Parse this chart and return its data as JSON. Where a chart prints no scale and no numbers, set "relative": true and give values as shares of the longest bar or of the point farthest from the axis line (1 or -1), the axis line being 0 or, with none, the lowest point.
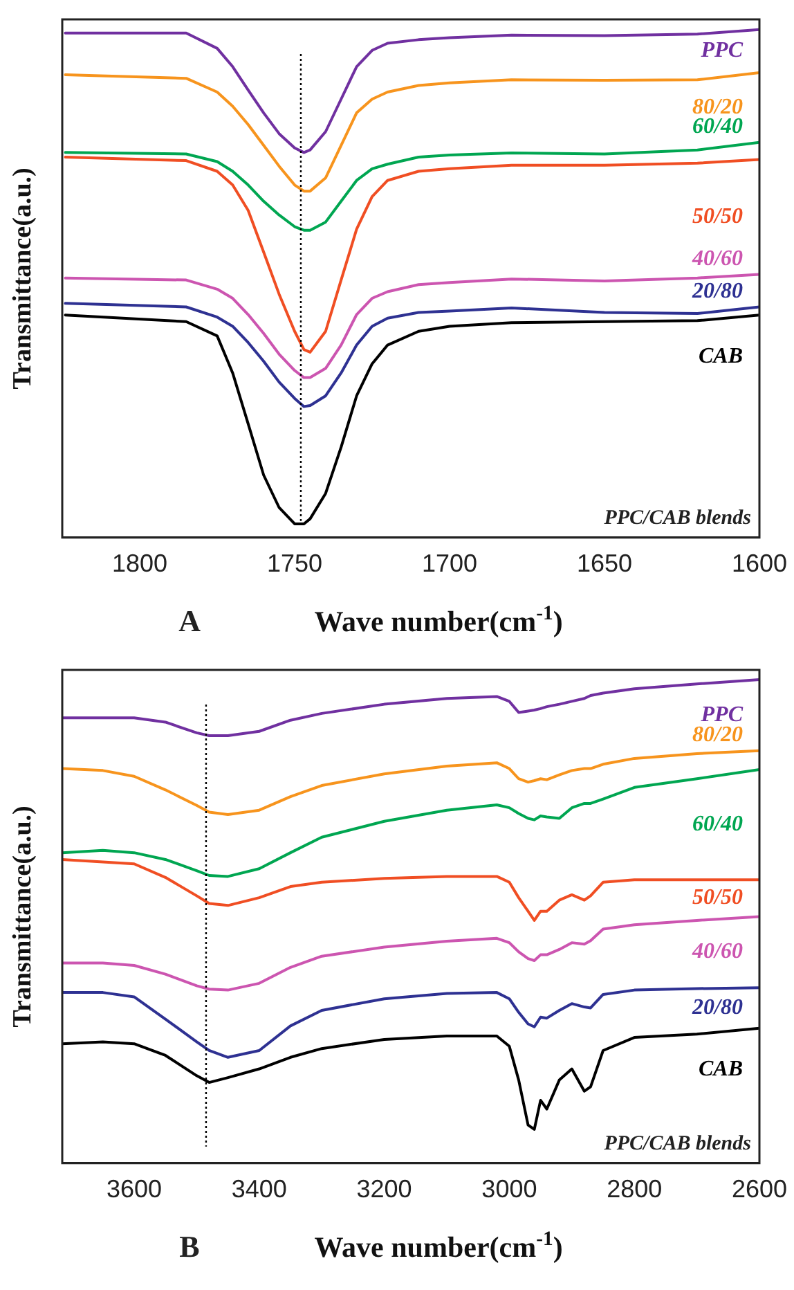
{
  "chart_data": [
    {
      "type": "line",
      "relative": true,
      "xlabel": "Wave number(cm$^{-1}$)",
      "ylabel": "Transmittance(a.u.)",
      "annotations": [
        "PPC/CAB blends",
        "A"
      ],
      "grid": false,
      "legend": false,
      "marker": "none",
      "xlim": [
        1825,
        1600
      ],
      "xticks": [
        1800,
        1750,
        1700,
        1650,
        1600
      ],
      "ref_lines": [
        {
          "axis": "x",
          "value": 1748,
          "line_style": "dotted",
          "color": "#000000"
        }
      ],
      "x": [
        1824,
        1785,
        1775,
        1770,
        1765,
        1760,
        1755,
        1750,
        1747,
        1745,
        1740,
        1735,
        1730,
        1725,
        1720,
        1710,
        1700,
        1680,
        1650,
        1620,
        1600
      ],
      "series": [
        {
          "name": "PPC",
          "color": "#7030a0",
          "values": [
            0.993,
            0.993,
            0.963,
            0.927,
            0.881,
            0.836,
            0.795,
            0.767,
            0.758,
            0.763,
            0.799,
            0.863,
            0.927,
            0.959,
            0.973,
            0.98,
            0.984,
            0.989,
            0.988,
            0.991,
            1
          ]
        },
        {
          "name": "80/20",
          "color": "#f7941d",
          "values": [
            0.911,
            0.904,
            0.877,
            0.849,
            0.813,
            0.772,
            0.731,
            0.694,
            0.682,
            0.682,
            0.708,
            0.772,
            0.836,
            0.863,
            0.877,
            0.89,
            0.895,
            0.901,
            0.9,
            0.901,
            0.915
          ]
        },
        {
          "name": "60/40",
          "color": "#00a651",
          "values": [
            0.758,
            0.755,
            0.74,
            0.721,
            0.694,
            0.662,
            0.635,
            0.612,
            0.605,
            0.605,
            0.621,
            0.662,
            0.703,
            0.726,
            0.735,
            0.749,
            0.753,
            0.757,
            0.755,
            0.763,
            0.778
          ]
        },
        {
          "name": "50/50",
          "color": "#f04e23",
          "values": [
            0.749,
            0.742,
            0.721,
            0.694,
            0.644,
            0.562,
            0.479,
            0.406,
            0.37,
            0.365,
            0.406,
            0.507,
            0.607,
            0.671,
            0.703,
            0.721,
            0.726,
            0.733,
            0.733,
            0.737,
            0.744
          ]
        },
        {
          "name": "40/60",
          "color": "#cc55b0",
          "values": [
            0.511,
            0.507,
            0.489,
            0.471,
            0.439,
            0.402,
            0.361,
            0.329,
            0.315,
            0.315,
            0.333,
            0.379,
            0.439,
            0.471,
            0.484,
            0.498,
            0.502,
            0.509,
            0.505,
            0.511,
            0.518
          ]
        },
        {
          "name": "20/80",
          "color": "#2e3192",
          "values": [
            0.461,
            0.454,
            0.434,
            0.416,
            0.384,
            0.347,
            0.306,
            0.274,
            0.258,
            0.26,
            0.279,
            0.324,
            0.379,
            0.416,
            0.432,
            0.443,
            0.446,
            0.452,
            0.443,
            0.441,
            0.454
          ]
        },
        {
          "name": "CAB",
          "color": "#000000",
          "values": [
            0.438,
            0.425,
            0.397,
            0.324,
            0.224,
            0.123,
            0.059,
            0.027,
            0.027,
            0.037,
            0.087,
            0.178,
            0.279,
            0.342,
            0.379,
            0.406,
            0.416,
            0.423,
            0.425,
            0.427,
            0.438
          ]
        }
      ]
    },
    {
      "type": "line",
      "relative": true,
      "xlabel": "Wave number(cm$^{-1}$)",
      "ylabel": "Transmittance(a.u.)",
      "annotations": [
        "PPC/CAB blends",
        "B"
      ],
      "grid": false,
      "legend": false,
      "marker": "none",
      "xlim": [
        3715,
        2600
      ],
      "xticks": [
        3600,
        3400,
        3200,
        3000,
        2800,
        2600
      ],
      "ref_lines": [
        {
          "axis": "x",
          "value": 3485,
          "line_style": "dotted",
          "color": "#000000"
        }
      ],
      "x": [
        3715,
        3650,
        3600,
        3550,
        3500,
        3480,
        3450,
        3400,
        3350,
        3300,
        3200,
        3100,
        3020,
        3000,
        2985,
        2970,
        2960,
        2950,
        2940,
        2920,
        2900,
        2880,
        2870,
        2850,
        2800,
        2700,
        2600
      ],
      "series": [
        {
          "name": "PPC",
          "color": "#7030a0",
          "values": [
            0.921,
            0.921,
            0.921,
            0.912,
            0.89,
            0.884,
            0.884,
            0.893,
            0.916,
            0.93,
            0.949,
            0.961,
            0.965,
            0.955,
            0.932,
            0.935,
            0.937,
            0.94,
            0.944,
            0.949,
            0.955,
            0.961,
            0.967,
            0.972,
            0.981,
            0.991,
            1
          ]
        },
        {
          "name": "80/20",
          "color": "#f7941d",
          "values": [
            0.816,
            0.812,
            0.8,
            0.772,
            0.74,
            0.726,
            0.721,
            0.73,
            0.758,
            0.781,
            0.805,
            0.821,
            0.828,
            0.816,
            0.795,
            0.788,
            0.791,
            0.795,
            0.793,
            0.803,
            0.812,
            0.816,
            0.816,
            0.825,
            0.837,
            0.847,
            0.853
          ]
        },
        {
          "name": "60/40",
          "color": "#00a651",
          "values": [
            0.642,
            0.647,
            0.642,
            0.628,
            0.605,
            0.595,
            0.593,
            0.609,
            0.642,
            0.674,
            0.707,
            0.73,
            0.741,
            0.735,
            0.723,
            0.713,
            0.71,
            0.718,
            0.716,
            0.713,
            0.735,
            0.744,
            0.744,
            0.753,
            0.777,
            0.795,
            0.814
          ]
        },
        {
          "name": "50/50",
          "color": "#f04e23",
          "values": [
            0.628,
            0.623,
            0.619,
            0.591,
            0.553,
            0.537,
            0.533,
            0.549,
            0.572,
            0.581,
            0.589,
            0.593,
            0.593,
            0.581,
            0.549,
            0.521,
            0.502,
            0.521,
            0.521,
            0.544,
            0.555,
            0.544,
            0.553,
            0.581,
            0.586,
            0.586,
            0.586
          ]
        },
        {
          "name": "40/60",
          "color": "#cc55b0",
          "values": [
            0.414,
            0.414,
            0.409,
            0.391,
            0.367,
            0.36,
            0.358,
            0.372,
            0.405,
            0.428,
            0.447,
            0.459,
            0.465,
            0.456,
            0.437,
            0.423,
            0.419,
            0.431,
            0.431,
            0.442,
            0.456,
            0.453,
            0.46,
            0.484,
            0.493,
            0.502,
            0.51
          ]
        },
        {
          "name": "20/80",
          "color": "#2e3192",
          "values": [
            0.353,
            0.353,
            0.344,
            0.298,
            0.251,
            0.233,
            0.219,
            0.233,
            0.284,
            0.316,
            0.34,
            0.351,
            0.353,
            0.34,
            0.312,
            0.288,
            0.282,
            0.302,
            0.3,
            0.316,
            0.33,
            0.323,
            0.321,
            0.349,
            0.358,
            0.361,
            0.363
          ]
        },
        {
          "name": "CAB",
          "color": "#000000",
          "values": [
            0.247,
            0.251,
            0.247,
            0.223,
            0.181,
            0.167,
            0.177,
            0.195,
            0.219,
            0.237,
            0.256,
            0.263,
            0.263,
            0.242,
            0.172,
            0.079,
            0.07,
            0.13,
            0.112,
            0.172,
            0.195,
            0.149,
            0.158,
            0.233,
            0.26,
            0.267,
            0.279
          ]
        }
      ]
    }
  ]
}
